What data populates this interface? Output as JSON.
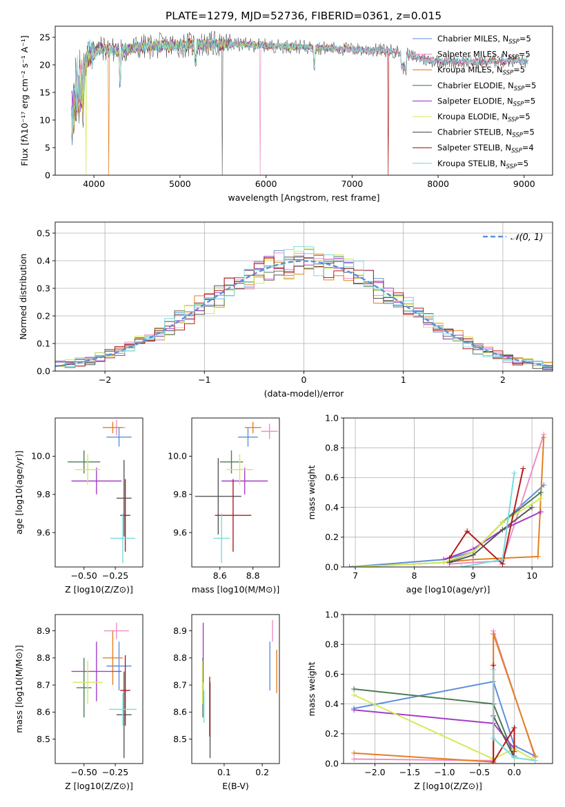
{
  "figure": {
    "title": "PLATE=1279, MJD=52736, FIBERID=0361, z=0.015"
  },
  "colors": {
    "Chabrier MILES": "#5b8fdc",
    "Salpeter MILES": "#ee8ec6",
    "Kroupa MILES": "#e2801e",
    "Chabrier ELODIE": "#4d7b54",
    "Salpeter ELODIE": "#a43cc8",
    "Kroupa ELODIE": "#d1ea58",
    "Chabrier STELIB": "#555555",
    "Salpeter STELIB": "#b11a1a",
    "Kroupa STELIB": "#77dcdc"
  },
  "legend_spectrum": [
    {
      "name": "Chabrier MILES, N",
      "sub": "SSP",
      "tail": "=5"
    },
    {
      "name": "Salpeter MILES, N",
      "sub": "SSP",
      "tail": "=5"
    },
    {
      "name": "Kroupa MILES, N",
      "sub": "SSP",
      "tail": "=5"
    },
    {
      "name": "Chabrier ELODIE, N",
      "sub": "SSP",
      "tail": "=5"
    },
    {
      "name": "Salpeter ELODIE, N",
      "sub": "SSP",
      "tail": "=5"
    },
    {
      "name": "Kroupa ELODIE, N",
      "sub": "SSP",
      "tail": "=5"
    },
    {
      "name": "Chabrier STELIB, N",
      "sub": "SSP",
      "tail": "=5"
    },
    {
      "name": "Salpeter STELIB, N",
      "sub": "SSP",
      "tail": "=4"
    },
    {
      "name": "Kroupa STELIB, N",
      "sub": "SSP",
      "tail": "=5"
    }
  ],
  "legend_hist": {
    "label": "𝒩(0, 1)"
  },
  "chart_data": [
    {
      "type": "line",
      "panel": "spectrum",
      "xlabel": "wavelength [Angstrom, rest frame]",
      "ylabel": "Flux [fλ10⁻¹⁷ erg cm⁻² s⁻¹ A⁻¹]",
      "xlim": [
        3550,
        9330
      ],
      "ylim": [
        0,
        27
      ],
      "xticks": [
        4000,
        5000,
        6000,
        7000,
        8000,
        9000
      ],
      "yticks": [
        0,
        5,
        10,
        15,
        20,
        25
      ],
      "continuum_x": [
        3740,
        3800,
        3900,
        4000,
        4100,
        4300,
        4500,
        5000,
        5500,
        6000,
        6500,
        7000,
        7500,
        7700,
        7900,
        8200,
        8500,
        8800,
        9050
      ],
      "continuum_y": [
        15,
        19,
        21,
        22.5,
        23,
        22.5,
        23.2,
        23.6,
        23.8,
        23.5,
        23.2,
        22.8,
        22.5,
        21.5,
        20.8,
        20.6,
        20.5,
        20.8,
        20.6
      ],
      "grid": false
    },
    {
      "type": "histogram",
      "panel": "residuals",
      "xlabel": "(data-model)/error",
      "ylabel": "Normed distribution",
      "xlim": [
        -2.5,
        2.5
      ],
      "ylim": [
        0,
        0.54
      ],
      "xticks": [
        -2,
        -1,
        0,
        1,
        2
      ],
      "yticks": [
        0.0,
        0.1,
        0.2,
        0.3,
        0.4,
        0.5
      ],
      "bin_width": 0.1,
      "reference_curve": "normal(0,1)",
      "grid": true
    },
    {
      "type": "scatter",
      "panel": "age-vs-Z",
      "xlabel": "Z [log10(Z/Z⊙)]",
      "ylabel": "age  [log10(age/yr)]",
      "xlim": [
        -0.73,
        -0.03
      ],
      "ylim": [
        9.42,
        10.2
      ],
      "xticks": [
        -0.5,
        -0.25
      ],
      "yticks": [
        9.6,
        9.8,
        10.0
      ],
      "series": [
        {
          "name": "Chabrier MILES",
          "x": -0.22,
          "y": 10.1,
          "xerr": 0.1,
          "yerr": 0.05
        },
        {
          "name": "Salpeter MILES",
          "x": -0.24,
          "y": 10.15,
          "xerr": 0.07,
          "yerr": 0.04
        },
        {
          "name": "Kroupa MILES",
          "x": -0.27,
          "y": 10.15,
          "xerr": 0.08,
          "yerr": 0.03
        },
        {
          "name": "Chabrier ELODIE",
          "x": -0.5,
          "y": 9.97,
          "xerr": 0.13,
          "yerr": 0.06
        },
        {
          "name": "Salpeter ELODIE",
          "x": -0.4,
          "y": 9.87,
          "xerr": 0.2,
          "yerr": 0.07
        },
        {
          "name": "Kroupa ELODIE",
          "x": -0.47,
          "y": 9.93,
          "xerr": 0.1,
          "yerr": 0.08
        },
        {
          "name": "Chabrier STELIB",
          "x": -0.18,
          "y": 9.78,
          "xerr": 0.06,
          "yerr": 0.2
        },
        {
          "name": "Salpeter STELIB",
          "x": -0.17,
          "y": 9.69,
          "xerr": 0.04,
          "yerr": 0.19
        },
        {
          "name": "Kroupa STELIB",
          "x": -0.19,
          "y": 9.57,
          "xerr": 0.1,
          "yerr": 0.13
        }
      ]
    },
    {
      "type": "scatter",
      "panel": "age-vs-mass",
      "xlabel": "mass [log10(M/M⊙)]",
      "ylabel": "",
      "xlim": [
        8.43,
        8.96
      ],
      "ylim": [
        9.42,
        10.2
      ],
      "xticks": [
        8.6,
        8.8
      ],
      "yticks": [
        9.6,
        9.8,
        10.0
      ],
      "series": [
        {
          "name": "Chabrier MILES",
          "x": 8.77,
          "y": 10.1,
          "xerr": 0.06,
          "yerr": 0.05
        },
        {
          "name": "Salpeter MILES",
          "x": 8.9,
          "y": 10.13,
          "xerr": 0.05,
          "yerr": 0.04
        },
        {
          "name": "Kroupa MILES",
          "x": 8.8,
          "y": 10.15,
          "xerr": 0.05,
          "yerr": 0.03
        },
        {
          "name": "Chabrier ELODIE",
          "x": 8.67,
          "y": 9.97,
          "xerr": 0.07,
          "yerr": 0.06
        },
        {
          "name": "Salpeter ELODIE",
          "x": 8.75,
          "y": 9.87,
          "xerr": 0.14,
          "yerr": 0.07
        },
        {
          "name": "Kroupa ELODIE",
          "x": 8.72,
          "y": 9.93,
          "xerr": 0.08,
          "yerr": 0.08
        },
        {
          "name": "Chabrier STELIB",
          "x": 8.59,
          "y": 9.79,
          "xerr": 0.14,
          "yerr": 0.2
        },
        {
          "name": "Salpeter STELIB",
          "x": 8.68,
          "y": 9.69,
          "xerr": 0.11,
          "yerr": 0.19
        },
        {
          "name": "Kroupa STELIB",
          "x": 8.61,
          "y": 9.57,
          "xerr": 0.05,
          "yerr": 0.13
        }
      ]
    },
    {
      "type": "line",
      "panel": "mass-weight-vs-age",
      "xlabel": "age  [log10(age/yr)]",
      "ylabel": "mass weight",
      "xlim": [
        6.8,
        10.35
      ],
      "ylim": [
        0,
        1
      ],
      "xticks": [
        7,
        8,
        9,
        10
      ],
      "yticks": [
        0.0,
        0.2,
        0.4,
        0.6,
        0.8,
        1.0
      ],
      "grid": true,
      "series": [
        {
          "name": "Chabrier MILES",
          "x": [
            6.9,
            8.5,
            9.0,
            9.5,
            10.2
          ],
          "y": [
            0.0,
            0.05,
            0.1,
            0.3,
            0.55
          ]
        },
        {
          "name": "Salpeter MILES",
          "x": [
            8.6,
            9.0,
            9.5,
            10.2
          ],
          "y": [
            0.02,
            0.03,
            0.04,
            0.89
          ]
        },
        {
          "name": "Kroupa MILES",
          "x": [
            7.0,
            8.5,
            9.0,
            10.1,
            10.2
          ],
          "y": [
            0.0,
            0.03,
            0.05,
            0.07,
            0.87
          ]
        },
        {
          "name": "Chabrier ELODIE",
          "x": [
            8.6,
            9.0,
            9.5,
            10.15
          ],
          "y": [
            0.04,
            0.1,
            0.3,
            0.5
          ]
        },
        {
          "name": "Salpeter ELODIE",
          "x": [
            8.5,
            9.0,
            9.5,
            10.15
          ],
          "y": [
            0.05,
            0.12,
            0.25,
            0.37
          ]
        },
        {
          "name": "Kroupa ELODIE",
          "x": [
            7.0,
            8.5,
            9.0,
            9.5,
            10.15
          ],
          "y": [
            0.0,
            0.03,
            0.1,
            0.3,
            0.46
          ]
        },
        {
          "name": "Chabrier STELIB",
          "x": [
            8.6,
            9.0,
            9.5,
            10.0
          ],
          "y": [
            0.03,
            0.08,
            0.25,
            0.4
          ]
        },
        {
          "name": "Salpeter STELIB",
          "x": [
            8.6,
            8.9,
            9.5,
            9.85
          ],
          "y": [
            0.06,
            0.24,
            0.02,
            0.66
          ]
        },
        {
          "name": "Kroupa STELIB",
          "x": [
            8.8,
            9.5,
            9.7
          ],
          "y": [
            0.0,
            0.05,
            0.63
          ]
        }
      ]
    },
    {
      "type": "scatter",
      "panel": "mass-vs-Z",
      "xlabel": "Z [log10(Z/Z⊙)]",
      "ylabel": "mass [log10(M/M⊙)]",
      "xlim": [
        -0.73,
        -0.03
      ],
      "ylim": [
        8.41,
        8.96
      ],
      "xticks": [
        -0.5,
        -0.25
      ],
      "yticks": [
        8.5,
        8.6,
        8.7,
        8.8,
        8.9
      ],
      "series": [
        {
          "name": "Chabrier MILES",
          "x": -0.22,
          "y": 8.77,
          "xerr": 0.1,
          "yerr": 0.09
        },
        {
          "name": "Salpeter MILES",
          "x": -0.24,
          "y": 8.9,
          "xerr": 0.1,
          "yerr": 0.03
        },
        {
          "name": "Kroupa MILES",
          "x": -0.27,
          "y": 8.8,
          "xerr": 0.08,
          "yerr": 0.1
        },
        {
          "name": "Chabrier ELODIE",
          "x": -0.5,
          "y": 8.69,
          "xerr": 0.06,
          "yerr": 0.11
        },
        {
          "name": "Salpeter ELODIE",
          "x": -0.4,
          "y": 8.75,
          "xerr": 0.2,
          "yerr": 0.11
        },
        {
          "name": "Kroupa ELODIE",
          "x": -0.47,
          "y": 8.71,
          "xerr": 0.12,
          "yerr": 0.08
        },
        {
          "name": "Chabrier STELIB",
          "x": -0.18,
          "y": 8.59,
          "xerr": 0.06,
          "yerr": 0.16
        },
        {
          "name": "Salpeter STELIB",
          "x": -0.17,
          "y": 8.68,
          "xerr": 0.04,
          "yerr": 0.13
        },
        {
          "name": "Kroupa STELIB",
          "x": -0.19,
          "y": 8.61,
          "xerr": 0.11,
          "yerr": 0.06
        }
      ]
    },
    {
      "type": "scatter",
      "panel": "mass-vs-EBV",
      "xlabel": "E(B-V)",
      "ylabel": "",
      "xlim": [
        0.015,
        0.245
      ],
      "ylim": [
        8.41,
        8.96
      ],
      "xticks": [
        0.1,
        0.2
      ],
      "yticks": [
        8.5,
        8.6,
        8.7,
        8.8,
        8.9
      ],
      "series": [
        {
          "name": "Chabrier MILES",
          "x": 0.22,
          "y": 8.77,
          "xerr": 0.0,
          "yerr": 0.09
        },
        {
          "name": "Salpeter MILES",
          "x": 0.227,
          "y": 8.9,
          "xerr": 0.0,
          "yerr": 0.04
        },
        {
          "name": "Kroupa MILES",
          "x": 0.238,
          "y": 8.75,
          "xerr": 0.0,
          "yerr": 0.08
        },
        {
          "name": "Chabrier ELODIE",
          "x": 0.044,
          "y": 8.69,
          "xerr": 0.0,
          "yerr": 0.11
        },
        {
          "name": "Salpeter ELODIE",
          "x": 0.045,
          "y": 8.82,
          "xerr": 0.0,
          "yerr": 0.11
        },
        {
          "name": "Kroupa ELODIE",
          "x": 0.043,
          "y": 8.71,
          "xerr": 0.0,
          "yerr": 0.08
        },
        {
          "name": "Chabrier STELIB",
          "x": 0.063,
          "y": 8.57,
          "xerr": 0.0,
          "yerr": 0.14
        },
        {
          "name": "Salpeter STELIB",
          "x": 0.062,
          "y": 8.62,
          "xerr": 0.0,
          "yerr": 0.11
        },
        {
          "name": "Kroupa STELIB",
          "x": 0.047,
          "y": 8.62,
          "xerr": 0.0,
          "yerr": 0.06
        }
      ]
    },
    {
      "type": "line",
      "panel": "mass-weight-vs-Z",
      "xlabel": "Z [log10(Z/Z⊙)]",
      "ylabel": "mass weight",
      "xlim": [
        -2.45,
        0.55
      ],
      "ylim": [
        0,
        1
      ],
      "xticks": [
        -2.0,
        -1.5,
        -1.0,
        -0.5,
        0.0
      ],
      "yticks": [
        0.0,
        0.2,
        0.4,
        0.6,
        0.8,
        1.0
      ],
      "grid": true,
      "series": [
        {
          "name": "Chabrier MILES",
          "x": [
            -2.3,
            -0.3,
            0.0,
            0.3
          ],
          "y": [
            0.37,
            0.55,
            0.12,
            0.05
          ]
        },
        {
          "name": "Salpeter MILES",
          "x": [
            -2.3,
            -0.3,
            -0.3,
            0.3
          ],
          "y": [
            0.03,
            0.02,
            0.89,
            0.04
          ]
        },
        {
          "name": "Kroupa MILES",
          "x": [
            -2.3,
            -0.3,
            -0.3,
            0.3
          ],
          "y": [
            0.07,
            0.01,
            0.87,
            0.05
          ]
        },
        {
          "name": "Chabrier ELODIE",
          "x": [
            -2.3,
            -0.3,
            0.0
          ],
          "y": [
            0.5,
            0.4,
            0.05
          ]
        },
        {
          "name": "Salpeter ELODIE",
          "x": [
            -2.3,
            -0.3,
            0.0
          ],
          "y": [
            0.36,
            0.27,
            0.1
          ]
        },
        {
          "name": "Kroupa ELODIE",
          "x": [
            -2.3,
            -0.3,
            0.0,
            0.3
          ],
          "y": [
            0.46,
            0.03,
            0.1,
            0.02
          ]
        },
        {
          "name": "Chabrier STELIB",
          "x": [
            -0.3,
            0.0
          ],
          "y": [
            0.32,
            0.04
          ]
        },
        {
          "name": "Salpeter STELIB",
          "x": [
            -0.3,
            -0.3,
            0.0,
            0.0
          ],
          "y": [
            0.66,
            0.01,
            0.24,
            0.08
          ]
        },
        {
          "name": "Kroupa STELIB",
          "x": [
            -0.3,
            -0.3,
            0.0,
            0.3
          ],
          "y": [
            0.63,
            0.17,
            0.04,
            0.02
          ]
        }
      ]
    }
  ]
}
